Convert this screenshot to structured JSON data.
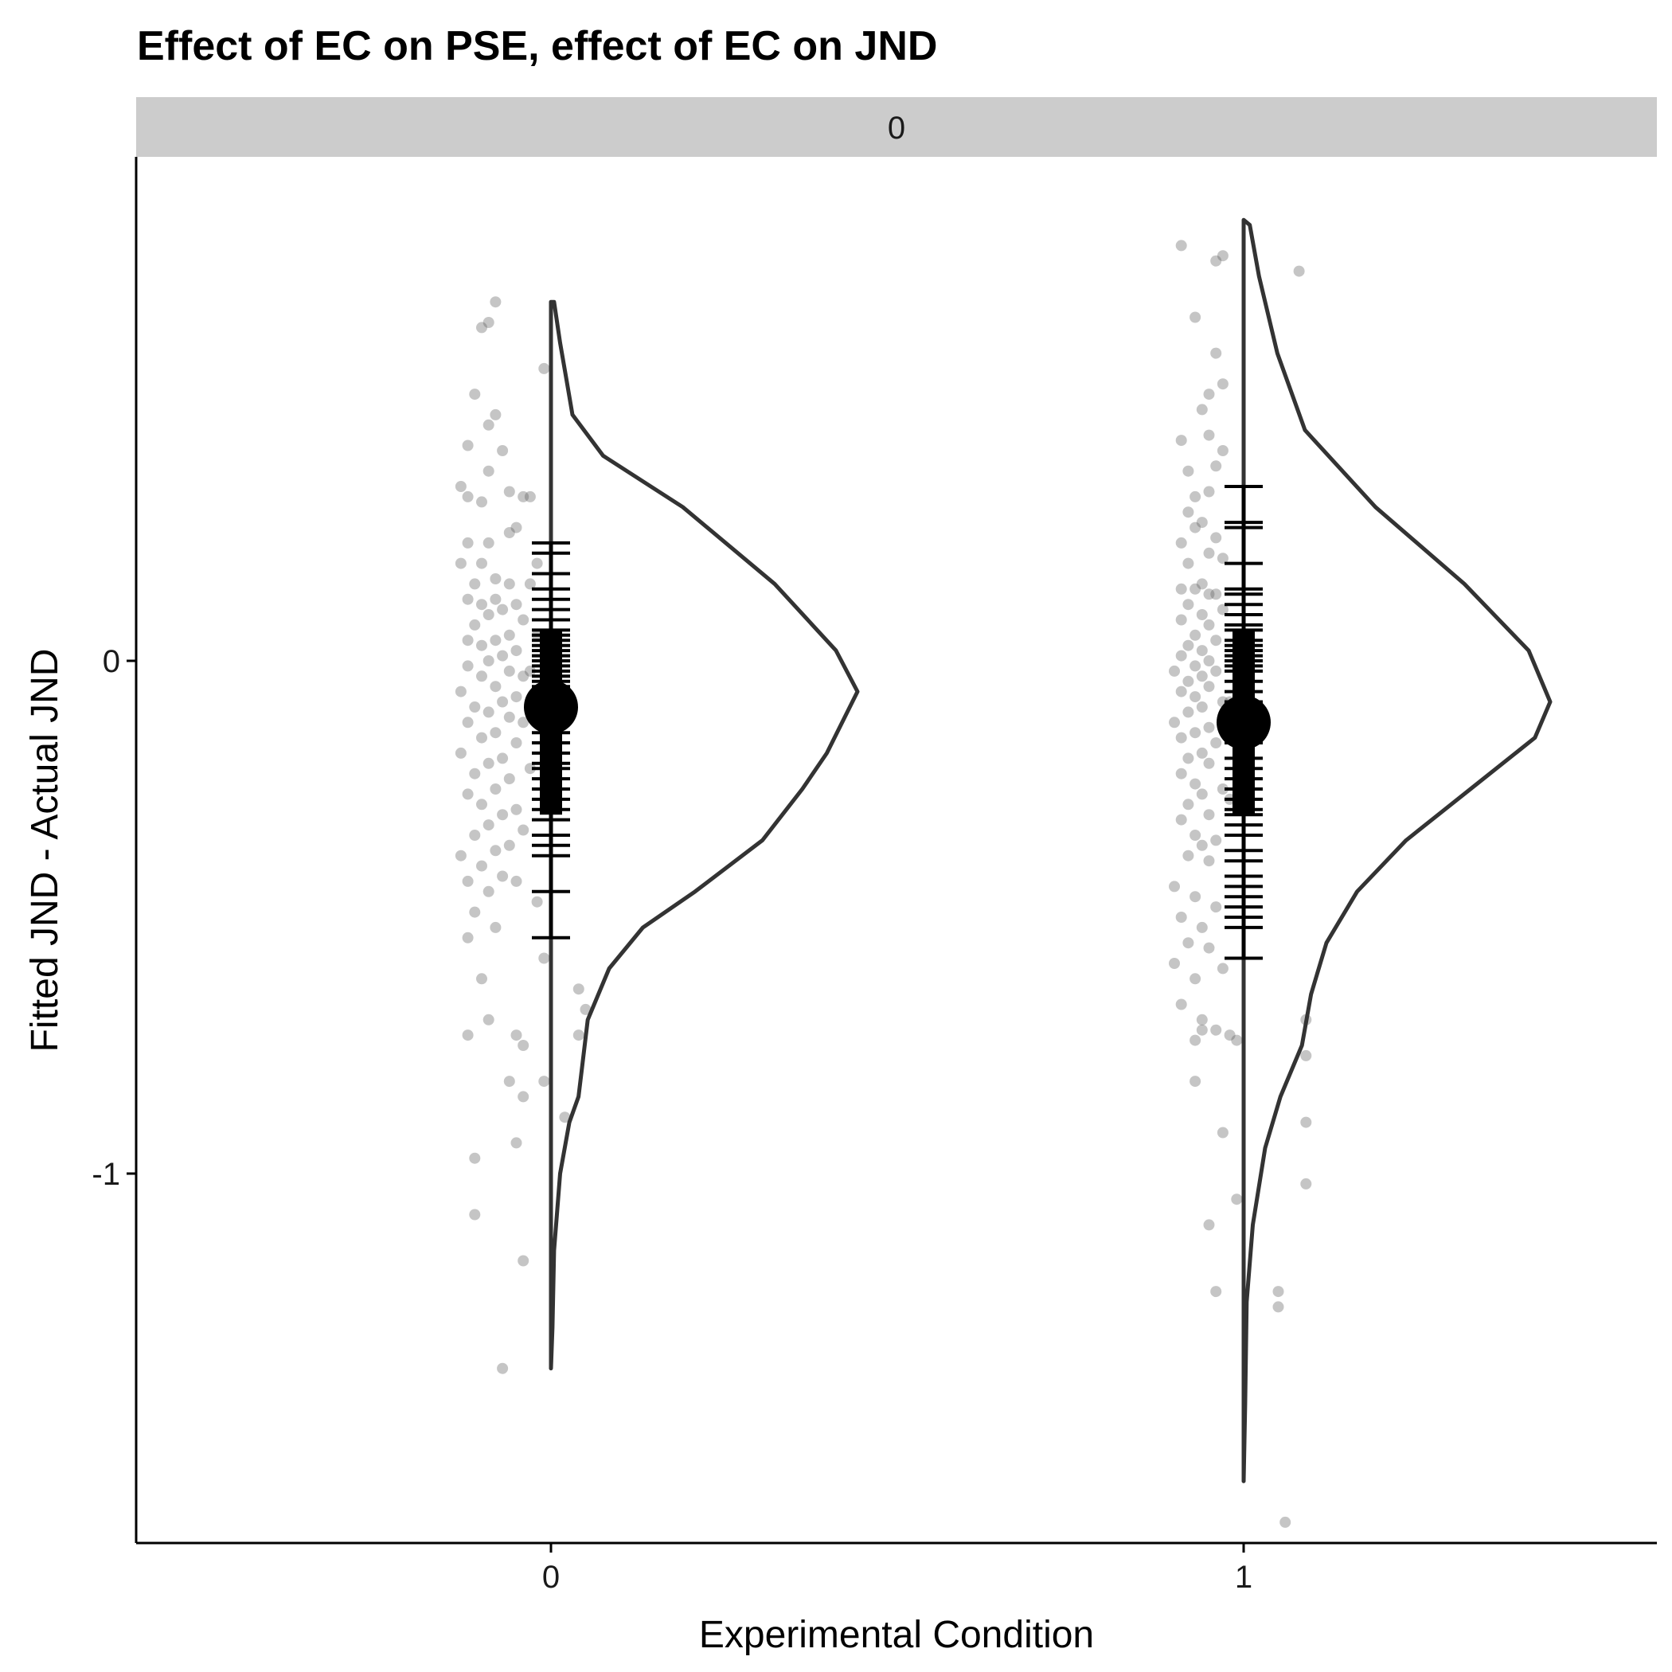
{
  "chart_data": {
    "type": "raincloud",
    "title": "Effect of EC on PSE, effect of EC on JND",
    "facet_label": "0",
    "xlabel": "Experimental Condition",
    "ylabel": "Fitted JND - Actual JND",
    "x_categories": [
      "0",
      "1"
    ],
    "y_ticks": [
      {
        "value": 0,
        "label": "0"
      },
      {
        "value": -1,
        "label": "-1"
      }
    ],
    "ylim": [
      -1.72,
      0.98
    ],
    "grid": false,
    "colors": {
      "points": "#5a5a5a",
      "density": "#333333",
      "summary": "#000000",
      "strip": "#cccccc"
    },
    "groups": [
      {
        "category": "0",
        "mean": -0.09,
        "density_curve": [
          [
            -1.38,
            0.0
          ],
          [
            -1.3,
            0.005
          ],
          [
            -1.15,
            0.01
          ],
          [
            -1.0,
            0.03
          ],
          [
            -0.9,
            0.06
          ],
          [
            -0.85,
            0.09
          ],
          [
            -0.8,
            0.1
          ],
          [
            -0.7,
            0.12
          ],
          [
            -0.6,
            0.19
          ],
          [
            -0.52,
            0.3
          ],
          [
            -0.45,
            0.47
          ],
          [
            -0.35,
            0.69
          ],
          [
            -0.25,
            0.82
          ],
          [
            -0.18,
            0.9
          ],
          [
            -0.06,
            1.0
          ],
          [
            0.02,
            0.93
          ],
          [
            0.15,
            0.73
          ],
          [
            0.3,
            0.43
          ],
          [
            0.4,
            0.17
          ],
          [
            0.48,
            0.07
          ],
          [
            0.55,
            0.05
          ],
          [
            0.62,
            0.03
          ],
          [
            0.7,
            0.01
          ],
          [
            0.7,
            0.0
          ]
        ],
        "rug": [
          0.23,
          0.21,
          0.17,
          0.14,
          0.12,
          0.1,
          0.08,
          0.06,
          0.05,
          0.04,
          0.03,
          0.02,
          0.01,
          0.0,
          -0.01,
          -0.02,
          -0.03,
          -0.04,
          -0.05,
          -0.07,
          -0.1,
          -0.12,
          -0.14,
          -0.16,
          -0.18,
          -0.2,
          -0.21,
          -0.23,
          -0.25,
          -0.27,
          -0.29,
          -0.31,
          -0.34,
          -0.36,
          -0.38,
          -0.45,
          -0.54
        ],
        "points": [
          [
            -0.08,
            0.7
          ],
          [
            -0.09,
            0.66
          ],
          [
            -0.1,
            0.65
          ],
          [
            -0.01,
            0.57
          ],
          [
            -0.11,
            0.52
          ],
          [
            -0.08,
            0.48
          ],
          [
            -0.09,
            0.46
          ],
          [
            -0.12,
            0.42
          ],
          [
            -0.07,
            0.41
          ],
          [
            -0.13,
            0.34
          ],
          [
            -0.09,
            0.37
          ],
          [
            -0.06,
            0.33
          ],
          [
            -0.03,
            0.32
          ],
          [
            -0.12,
            0.32
          ],
          [
            -0.1,
            0.31
          ],
          [
            -0.04,
            0.32
          ],
          [
            -0.05,
            0.26
          ],
          [
            -0.06,
            0.25
          ],
          [
            -0.09,
            0.23
          ],
          [
            -0.12,
            0.23
          ],
          [
            -0.02,
            0.19
          ],
          [
            -0.1,
            0.19
          ],
          [
            -0.13,
            0.19
          ],
          [
            -0.08,
            0.16
          ],
          [
            -0.06,
            0.15
          ],
          [
            -0.11,
            0.15
          ],
          [
            -0.03,
            0.15
          ],
          [
            -0.12,
            0.12
          ],
          [
            -0.08,
            0.12
          ],
          [
            -0.05,
            0.11
          ],
          [
            -0.1,
            0.11
          ],
          [
            -0.07,
            0.1
          ],
          [
            -0.09,
            0.09
          ],
          [
            -0.04,
            0.08
          ],
          [
            -0.11,
            0.07
          ],
          [
            -0.06,
            0.05
          ],
          [
            -0.12,
            0.04
          ],
          [
            -0.08,
            0.04
          ],
          [
            -0.1,
            0.03
          ],
          [
            -0.05,
            0.02
          ],
          [
            -0.07,
            0.01
          ],
          [
            -0.09,
            0.0
          ],
          [
            -0.12,
            -0.01
          ],
          [
            -0.06,
            -0.02
          ],
          [
            -0.04,
            -0.03
          ],
          [
            -0.1,
            -0.03
          ],
          [
            -0.08,
            -0.05
          ],
          [
            -0.13,
            -0.06
          ],
          [
            -0.05,
            -0.07
          ],
          [
            -0.07,
            -0.08
          ],
          [
            -0.11,
            -0.09
          ],
          [
            -0.09,
            -0.1
          ],
          [
            -0.06,
            -0.11
          ],
          [
            -0.12,
            -0.12
          ],
          [
            -0.04,
            -0.12
          ],
          [
            -0.08,
            -0.14
          ],
          [
            -0.1,
            -0.15
          ],
          [
            -0.05,
            -0.16
          ],
          [
            -0.13,
            -0.18
          ],
          [
            -0.07,
            -0.19
          ],
          [
            -0.09,
            -0.2
          ],
          [
            -0.03,
            -0.21
          ],
          [
            -0.11,
            -0.22
          ],
          [
            -0.06,
            -0.23
          ],
          [
            -0.08,
            -0.25
          ],
          [
            -0.12,
            -0.26
          ],
          [
            -0.1,
            -0.28
          ],
          [
            -0.05,
            -0.29
          ],
          [
            -0.07,
            -0.3
          ],
          [
            -0.09,
            -0.32
          ],
          [
            -0.04,
            -0.33
          ],
          [
            -0.11,
            -0.34
          ],
          [
            -0.06,
            -0.36
          ],
          [
            -0.08,
            -0.37
          ],
          [
            -0.13,
            -0.38
          ],
          [
            -0.1,
            -0.4
          ],
          [
            -0.07,
            -0.42
          ],
          [
            -0.12,
            -0.43
          ],
          [
            -0.05,
            -0.43
          ],
          [
            -0.09,
            -0.45
          ],
          [
            -0.02,
            -0.47
          ],
          [
            -0.11,
            -0.49
          ],
          [
            -0.08,
            -0.52
          ],
          [
            -0.12,
            -0.54
          ],
          [
            -0.01,
            -0.58
          ],
          [
            -0.1,
            -0.62
          ],
          [
            -0.09,
            -0.7
          ],
          [
            -0.12,
            -0.73
          ],
          [
            -0.05,
            -0.73
          ],
          [
            -0.04,
            -0.75
          ],
          [
            -0.06,
            -0.82
          ],
          [
            -0.04,
            -0.85
          ],
          [
            -0.01,
            -0.82
          ],
          [
            0.04,
            -0.64
          ],
          [
            0.05,
            -0.68
          ],
          [
            0.04,
            -0.73
          ],
          [
            0.02,
            -0.89
          ],
          [
            -0.11,
            -0.97
          ],
          [
            -0.11,
            -1.08
          ],
          [
            -0.05,
            -0.94
          ],
          [
            -0.04,
            -1.17
          ],
          [
            -0.07,
            -1.38
          ],
          [
            -0.03,
            -0.02
          ],
          [
            -0.02,
            -0.12
          ],
          [
            -0.02,
            0.05
          ]
        ]
      },
      {
        "category": "1",
        "mean": -0.12,
        "density_curve": [
          [
            -1.6,
            0.0
          ],
          [
            -1.45,
            0.005
          ],
          [
            -1.25,
            0.01
          ],
          [
            -1.1,
            0.03
          ],
          [
            -0.95,
            0.07
          ],
          [
            -0.85,
            0.12
          ],
          [
            -0.75,
            0.19
          ],
          [
            -0.65,
            0.22
          ],
          [
            -0.55,
            0.27
          ],
          [
            -0.45,
            0.37
          ],
          [
            -0.35,
            0.53
          ],
          [
            -0.25,
            0.74
          ],
          [
            -0.15,
            0.95
          ],
          [
            -0.08,
            1.0
          ],
          [
            0.02,
            0.93
          ],
          [
            0.15,
            0.72
          ],
          [
            0.3,
            0.43
          ],
          [
            0.45,
            0.2
          ],
          [
            0.6,
            0.11
          ],
          [
            0.75,
            0.05
          ],
          [
            0.85,
            0.02
          ],
          [
            0.86,
            0.0
          ]
        ],
        "rug": [
          0.34,
          0.27,
          0.26,
          0.19,
          0.14,
          0.13,
          0.11,
          0.09,
          0.07,
          0.06,
          0.04,
          0.03,
          0.02,
          0.01,
          0.0,
          -0.01,
          -0.02,
          -0.04,
          -0.06,
          -0.08,
          -0.1,
          -0.12,
          -0.14,
          -0.16,
          -0.19,
          -0.21,
          -0.23,
          -0.25,
          -0.27,
          -0.29,
          -0.3,
          -0.32,
          -0.34,
          -0.37,
          -0.39,
          -0.42,
          -0.44,
          -0.46,
          -0.48,
          -0.5,
          -0.52,
          -0.58
        ],
        "points": [
          [
            -0.09,
            0.81
          ],
          [
            -0.03,
            0.79
          ],
          [
            -0.04,
            0.78
          ],
          [
            0.08,
            0.76
          ],
          [
            -0.07,
            0.67
          ],
          [
            -0.04,
            0.6
          ],
          [
            -0.03,
            0.54
          ],
          [
            -0.05,
            0.52
          ],
          [
            -0.06,
            0.49
          ],
          [
            -0.09,
            0.43
          ],
          [
            -0.05,
            0.44
          ],
          [
            -0.03,
            0.41
          ],
          [
            -0.04,
            0.38
          ],
          [
            -0.08,
            0.37
          ],
          [
            -0.05,
            0.33
          ],
          [
            -0.07,
            0.32
          ],
          [
            -0.08,
            0.29
          ],
          [
            -0.07,
            0.26
          ],
          [
            -0.06,
            0.27
          ],
          [
            -0.04,
            0.24
          ],
          [
            -0.09,
            0.23
          ],
          [
            -0.05,
            0.21
          ],
          [
            -0.03,
            0.2
          ],
          [
            -0.08,
            0.19
          ],
          [
            -0.06,
            0.15
          ],
          [
            -0.09,
            0.14
          ],
          [
            -0.04,
            0.13
          ],
          [
            -0.07,
            0.14
          ],
          [
            -0.05,
            0.13
          ],
          [
            -0.08,
            0.11
          ],
          [
            -0.03,
            0.1
          ],
          [
            -0.06,
            0.09
          ],
          [
            -0.09,
            0.08
          ],
          [
            -0.05,
            0.07
          ],
          [
            -0.07,
            0.05
          ],
          [
            -0.04,
            0.04
          ],
          [
            -0.08,
            0.03
          ],
          [
            -0.06,
            0.02
          ],
          [
            -0.09,
            0.01
          ],
          [
            -0.05,
            0.0
          ],
          [
            -0.07,
            -0.01
          ],
          [
            -0.04,
            -0.02
          ],
          [
            -0.1,
            -0.02
          ],
          [
            -0.06,
            -0.03
          ],
          [
            -0.08,
            -0.04
          ],
          [
            -0.05,
            -0.05
          ],
          [
            -0.09,
            -0.06
          ],
          [
            -0.07,
            -0.07
          ],
          [
            -0.03,
            -0.08
          ],
          [
            -0.06,
            -0.09
          ],
          [
            -0.08,
            -0.1
          ],
          [
            -0.1,
            -0.12
          ],
          [
            -0.05,
            -0.13
          ],
          [
            -0.07,
            -0.14
          ],
          [
            -0.09,
            -0.15
          ],
          [
            -0.04,
            -0.16
          ],
          [
            -0.06,
            -0.18
          ],
          [
            -0.08,
            -0.19
          ],
          [
            -0.05,
            -0.2
          ],
          [
            -0.09,
            -0.22
          ],
          [
            -0.07,
            -0.24
          ],
          [
            -0.03,
            -0.25
          ],
          [
            -0.06,
            -0.26
          ],
          [
            -0.08,
            -0.28
          ],
          [
            -0.05,
            -0.3
          ],
          [
            -0.09,
            -0.31
          ],
          [
            -0.07,
            -0.34
          ],
          [
            -0.04,
            -0.35
          ],
          [
            -0.06,
            -0.36
          ],
          [
            -0.08,
            -0.38
          ],
          [
            -0.05,
            -0.39
          ],
          [
            -0.1,
            -0.44
          ],
          [
            -0.07,
            -0.46
          ],
          [
            -0.04,
            -0.48
          ],
          [
            -0.09,
            -0.5
          ],
          [
            -0.06,
            -0.52
          ],
          [
            -0.08,
            -0.55
          ],
          [
            -0.05,
            -0.56
          ],
          [
            -0.03,
            -0.6
          ],
          [
            -0.1,
            -0.59
          ],
          [
            -0.07,
            -0.62
          ],
          [
            -0.09,
            -0.67
          ],
          [
            -0.04,
            -0.72
          ],
          [
            -0.07,
            -0.74
          ],
          [
            -0.06,
            -0.72
          ],
          [
            -0.02,
            -0.73
          ],
          [
            -0.07,
            -0.82
          ],
          [
            -0.03,
            -0.92
          ],
          [
            -0.06,
            -0.7
          ],
          [
            -0.01,
            -0.74
          ],
          [
            0.09,
            -0.7
          ],
          [
            0.09,
            -0.77
          ],
          [
            0.09,
            -0.9
          ],
          [
            0.09,
            -1.02
          ],
          [
            -0.01,
            -1.05
          ],
          [
            -0.05,
            -1.1
          ],
          [
            -0.04,
            -1.23
          ],
          [
            0.05,
            -1.23
          ],
          [
            0.05,
            -1.26
          ],
          [
            0.06,
            -1.68
          ],
          [
            -0.02,
            -0.08
          ],
          [
            -0.02,
            -0.27
          ]
        ]
      }
    ]
  }
}
